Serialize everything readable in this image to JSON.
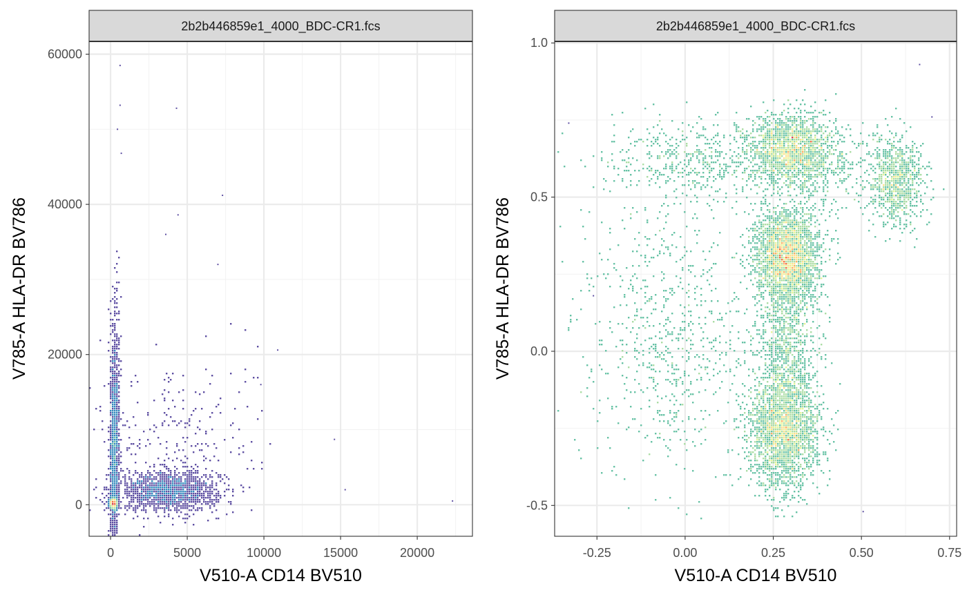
{
  "colors": {
    "panel_border": "#333333",
    "strip_fill": "#d9d9d9",
    "grid_major": "#ebebeb",
    "grid_minor": "#f2f2f2",
    "tick_text": "#4d4d4d",
    "density_scale": [
      "#5e4fa2",
      "#3288bd",
      "#66c2a5",
      "#abdda4",
      "#e6f598",
      "#fee08b",
      "#fdae61",
      "#f46d43",
      "#d53e4f"
    ]
  },
  "chart_data": [
    {
      "type": "scatter",
      "title": "",
      "strip_label": "2b2b446859e1_4000_BDC-CR1.fcs",
      "xlabel": "V510-A CD14 BV510",
      "ylabel": "V785-A HLA-DR BV786",
      "xlim": [
        -1400,
        23600
      ],
      "ylim": [
        -4200,
        61700
      ],
      "xticks": [
        0,
        5000,
        10000,
        15000,
        20000
      ],
      "xtick_labels": [
        "0",
        "5000",
        "10000",
        "15000",
        "20000"
      ],
      "yticks": [
        0,
        20000,
        40000,
        60000
      ],
      "ytick_labels": [
        "0",
        "20000",
        "40000",
        "60000"
      ],
      "grid": true,
      "density_clusters": [
        {
          "x": 200,
          "y": 200,
          "sx": 120,
          "sy": 350,
          "n": 1400
        },
        {
          "x": 250,
          "y": 6000,
          "sx": 130,
          "sy": 5500,
          "n": 1300
        },
        {
          "x": 300,
          "y": 16000,
          "sx": 160,
          "sy": 6000,
          "n": 350
        },
        {
          "x": 3800,
          "y": 1800,
          "sx": 1600,
          "sy": 1300,
          "n": 1600
        },
        {
          "x": 4200,
          "y": 9000,
          "sx": 2700,
          "sy": 5500,
          "n": 260
        }
      ],
      "outliers": [
        [
          620,
          58500
        ],
        [
          620,
          53200
        ],
        [
          4300,
          52800
        ],
        [
          450,
          50000
        ],
        [
          700,
          46800
        ],
        [
          7300,
          41200
        ],
        [
          4400,
          38600
        ],
        [
          3600,
          36000
        ],
        [
          7000,
          32000
        ],
        [
          22300,
          500
        ],
        [
          15300,
          2000
        ],
        [
          14600,
          8700
        ],
        [
          10900,
          20600
        ],
        [
          9800,
          16000
        ]
      ]
    },
    {
      "type": "scatter",
      "title": "",
      "strip_label": "2b2b446859e1_4000_BDC-CR1.fcs",
      "xlabel": "V510-A CD14 BV510",
      "ylabel": "V785-A HLA-DR BV786",
      "xlim": [
        -0.37,
        0.77
      ],
      "ylim": [
        -0.6,
        1.005
      ],
      "xticks": [
        -0.25,
        0.0,
        0.25,
        0.5,
        0.75
      ],
      "xtick_labels": [
        "-0.25",
        "0.00",
        "0.25",
        "0.50",
        "0.75"
      ],
      "yticks": [
        -0.5,
        0.0,
        0.5,
        1.0
      ],
      "ytick_labels": [
        "-0.5",
        "0.0",
        "0.5",
        "1.0"
      ],
      "grid": true,
      "density_clusters": [
        {
          "x": 0.29,
          "y": 0.31,
          "sx": 0.045,
          "sy": 0.075,
          "n": 2600
        },
        {
          "x": 0.28,
          "y": -0.26,
          "sx": 0.05,
          "sy": 0.09,
          "n": 2300
        },
        {
          "x": 0.29,
          "y": 0.02,
          "sx": 0.042,
          "sy": 0.14,
          "n": 1000
        },
        {
          "x": 0.3,
          "y": 0.65,
          "sx": 0.06,
          "sy": 0.06,
          "n": 1800
        },
        {
          "x": 0.6,
          "y": 0.55,
          "sx": 0.04,
          "sy": 0.07,
          "n": 900
        },
        {
          "x": 0.05,
          "y": 0.62,
          "sx": 0.14,
          "sy": 0.06,
          "n": 550
        },
        {
          "x": -0.05,
          "y": 0.05,
          "sx": 0.12,
          "sy": 0.22,
          "n": 750
        },
        {
          "x": 0.42,
          "y": 0.6,
          "sx": 0.08,
          "sy": 0.08,
          "n": 250
        }
      ],
      "outliers": [
        [
          0.665,
          0.93
        ],
        [
          0.505,
          -0.52
        ],
        [
          -0.33,
          0.74
        ],
        [
          -0.26,
          0.18
        ],
        [
          0.7,
          0.76
        ]
      ]
    }
  ]
}
